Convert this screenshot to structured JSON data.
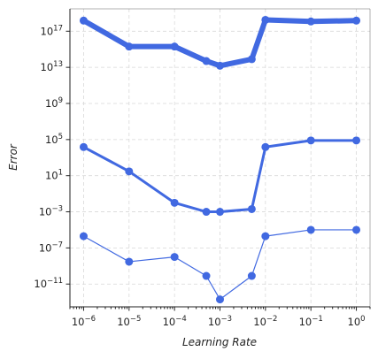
{
  "chart_data": {
    "type": "line",
    "xlabel": "Learning Rate",
    "ylabel": "Error",
    "xscale": "log",
    "yscale": "log",
    "xlim": [
      5e-07,
      2
    ],
    "ylim": [
      3e-14,
      3e+19
    ],
    "grid": true,
    "color": "#4169e1",
    "x": [
      1e-06,
      1e-05,
      0.0001,
      0.0005,
      0.001,
      0.005,
      0.01,
      0.1,
      1
    ],
    "x_ticks": [
      1e-06,
      1e-05,
      0.0001,
      0.001,
      0.01,
      0.1,
      1
    ],
    "x_tick_labels": [
      {
        "base": "10",
        "exp": "−6"
      },
      {
        "base": "10",
        "exp": "−5"
      },
      {
        "base": "10",
        "exp": "−4"
      },
      {
        "base": "10",
        "exp": "−3"
      },
      {
        "base": "10",
        "exp": "−2"
      },
      {
        "base": "10",
        "exp": "−1"
      },
      {
        "base": "10",
        "exp": "0"
      }
    ],
    "y_ticks": [
      1e-11,
      1e-07,
      0.001,
      10,
      100000.0,
      1000000000.0,
      10000000000000.0,
      1e+17
    ],
    "y_tick_labels": [
      {
        "base": "10",
        "exp": "−11"
      },
      {
        "base": "10",
        "exp": "−7"
      },
      {
        "base": "10",
        "exp": "−3"
      },
      {
        "base": "10",
        "exp": "1"
      },
      {
        "base": "10",
        "exp": "5"
      },
      {
        "base": "10",
        "exp": "9"
      },
      {
        "base": "10",
        "exp": "13"
      },
      {
        "base": "10",
        "exp": "17"
      }
    ],
    "series": [
      {
        "values": [
          1.5e+18,
          2000000000000000.0,
          2000000000000000.0,
          50000000000000.0,
          15000000000000.0,
          80000000000000.0,
          1.8e+18,
          1.2e+18,
          1.5e+18
        ],
        "line_width": 6
      },
      {
        "values": [
          15000.0,
          30,
          0.01,
          0.001,
          0.001,
          0.002,
          15000.0,
          80000.0,
          80000.0
        ],
        "line_width": 3
      },
      {
        "values": [
          2e-06,
          3e-09,
          1e-08,
          8e-11,
          2e-13,
          8e-11,
          2e-06,
          1e-05,
          1e-05
        ],
        "line_width": 1.2
      }
    ]
  }
}
